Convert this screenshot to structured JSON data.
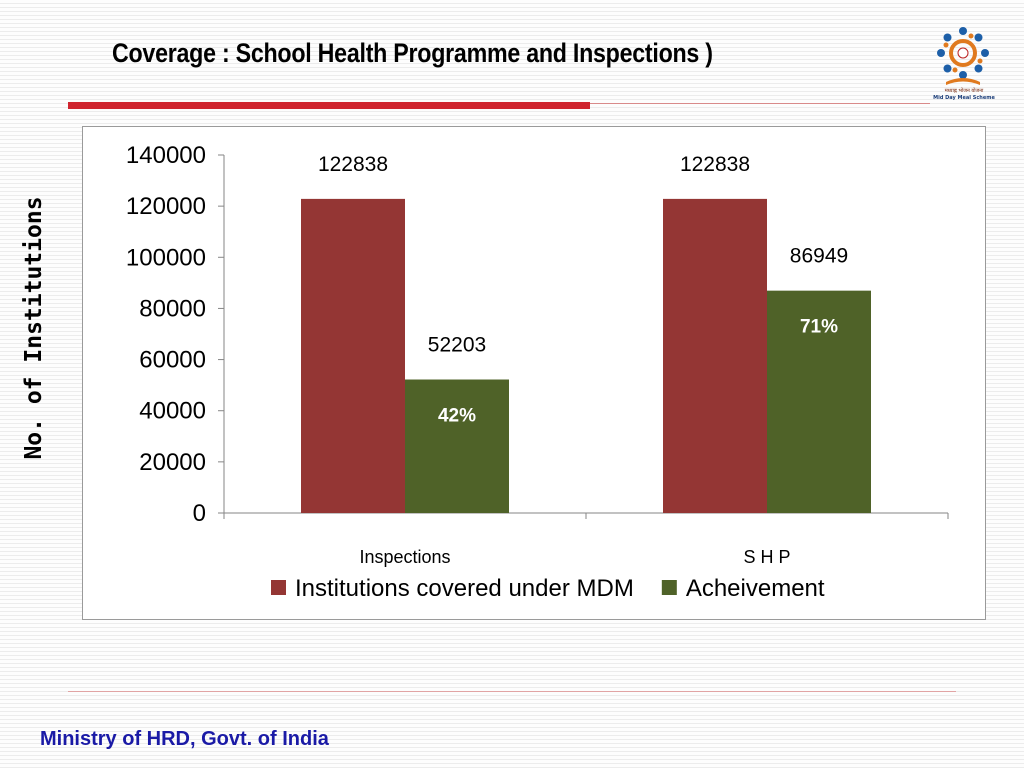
{
  "slide": {
    "title": "Coverage : School Health Programme and Inspections )",
    "footer": "Ministry of HRD, Govt. of India",
    "logo_caption_hindi": "मध्याह्न भोजन योजना",
    "logo_caption": "Mid Day Meal Scheme"
  },
  "chart_data": {
    "type": "bar",
    "ylabel": "No. of Institutions",
    "categories": [
      "Inspections",
      "S H P"
    ],
    "series": [
      {
        "name": "Institutions covered under MDM",
        "values": [
          122838,
          122838
        ],
        "color": "#943634",
        "data_labels": [
          "122838",
          "122838"
        ]
      },
      {
        "name": "Acheivement",
        "values": [
          52203,
          86949
        ],
        "color": "#4f6228",
        "data_labels": [
          "52203",
          "86949"
        ],
        "percent_labels": [
          "42%",
          "71%"
        ]
      }
    ],
    "ylim": [
      0,
      140000
    ],
    "yticks": [
      0,
      20000,
      40000,
      60000,
      80000,
      100000,
      120000,
      140000
    ],
    "legend_position": "bottom",
    "grid": false
  }
}
